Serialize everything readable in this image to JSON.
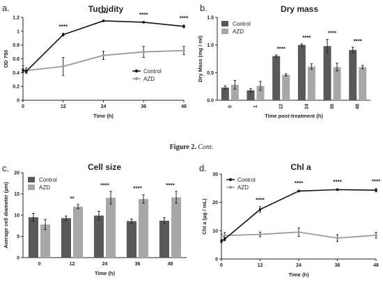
{
  "figure": {
    "caption": {
      "label": "Figure 2.",
      "text": "Cont."
    }
  },
  "colors": {
    "control_line": "#111111",
    "azd_line": "#9a9a9a",
    "control_bar": "#595959",
    "azd_bar": "#a8a8a8"
  },
  "chart_data": [
    {
      "id": "a",
      "letter": "a.",
      "type": "line",
      "title": "Turbidity",
      "xlabel": "Time (h)",
      "ylabel": "OD 750",
      "xlim": [
        0,
        48
      ],
      "ylim": [
        0,
        1.2
      ],
      "xticks": [
        0,
        12,
        24,
        36,
        48
      ],
      "yticks": [
        0,
        0.2,
        0.4,
        0.6,
        0.8,
        1,
        1.2
      ],
      "ytick_labels": [
        "0",
        "0.2",
        "0.4",
        "0.6",
        "0.8",
        "1",
        "1.2"
      ],
      "legend": "bottom-right",
      "series": [
        {
          "name": "Control",
          "x": [
            0,
            1,
            12,
            24,
            36,
            48
          ],
          "y": [
            0.43,
            0.42,
            0.95,
            1.15,
            1.13,
            1.07
          ],
          "err": [
            0.03,
            0.02,
            0.02,
            0.01,
            0.01,
            0.02
          ]
        },
        {
          "name": "AZD",
          "x": [
            0,
            1,
            12,
            24,
            36,
            48
          ],
          "y": [
            0.45,
            0.43,
            0.49,
            0.65,
            0.7,
            0.72
          ],
          "err": [
            0.05,
            0.04,
            0.13,
            0.06,
            0.08,
            0.06
          ]
        }
      ],
      "annotations": [
        {
          "x": 12,
          "text": "****"
        },
        {
          "x": 24,
          "text": "****"
        },
        {
          "x": 36,
          "text": "****"
        },
        {
          "x": 48,
          "text": "****"
        }
      ]
    },
    {
      "id": "b",
      "letter": "b.",
      "type": "bar",
      "title": "Dry mass",
      "xlabel": "Time post-treatment (h)",
      "ylabel": "Dry Mass (mg / ml)",
      "ylim": [
        0,
        1.5
      ],
      "yticks": [
        0,
        0.5,
        1,
        1.5
      ],
      "ytick_labels": [
        "0.0",
        "0.5",
        "1.0",
        "1.5"
      ],
      "categories": [
        "0",
        "1",
        "12",
        "24",
        "36",
        "48"
      ],
      "legend": "top-left",
      "series": [
        {
          "name": "Control",
          "values": [
            0.23,
            0.18,
            0.8,
            1.0,
            0.98,
            0.91
          ],
          "err": [
            0.03,
            0.03,
            0.02,
            0.02,
            0.12,
            0.05
          ]
        },
        {
          "name": "AZD",
          "values": [
            0.28,
            0.26,
            0.46,
            0.61,
            0.6,
            0.6
          ],
          "err": [
            0.08,
            0.08,
            0.02,
            0.05,
            0.07,
            0.03
          ]
        }
      ],
      "annotations": [
        {
          "category": "12",
          "text": "****"
        },
        {
          "category": "24",
          "text": "****"
        },
        {
          "category": "36",
          "text": "****"
        },
        {
          "category": "48",
          "text": "****"
        }
      ]
    },
    {
      "id": "c",
      "letter": "c.",
      "type": "bar",
      "title": "Cell size",
      "xlabel": "Time (h)",
      "ylabel": "Average cell diameter (µm)",
      "ylim": [
        0,
        20
      ],
      "yticks": [
        0,
        5,
        10,
        15,
        20
      ],
      "ytick_labels": [
        "0",
        "5",
        "10",
        "15",
        "20"
      ],
      "categories": [
        "0",
        "12",
        "24",
        "36",
        "48"
      ],
      "legend": "top-left",
      "series": [
        {
          "name": "Control",
          "values": [
            9.5,
            9.3,
            9.9,
            8.6,
            8.7
          ],
          "err": [
            0.9,
            0.5,
            1.0,
            0.5,
            0.7
          ]
        },
        {
          "name": "AZD",
          "values": [
            7.8,
            12.0,
            14.1,
            13.8,
            14.2
          ],
          "err": [
            1.2,
            0.5,
            1.5,
            1.0,
            1.4
          ]
        }
      ],
      "annotations": [
        {
          "category": "12",
          "text": "**"
        },
        {
          "category": "24",
          "text": "****"
        },
        {
          "category": "36",
          "text": "****"
        },
        {
          "category": "48",
          "text": "****"
        }
      ]
    },
    {
      "id": "d",
      "letter": "d.",
      "type": "line",
      "title": "Chl a",
      "xlabel": "Time (h)",
      "ylabel": "Chl a (µg / mL)",
      "xlim": [
        0,
        48
      ],
      "ylim": [
        0,
        30
      ],
      "xticks": [
        0,
        12,
        24,
        36,
        48
      ],
      "yticks": [
        0,
        10,
        20,
        30
      ],
      "ytick_labels": [
        "0",
        "10",
        "20",
        "30"
      ],
      "legend": "top-left",
      "series": [
        {
          "name": "Control",
          "x": [
            0,
            1,
            12,
            24,
            36,
            48
          ],
          "y": [
            6.3,
            7.0,
            17.5,
            24.0,
            24.5,
            24.3
          ],
          "err": [
            0.6,
            0.6,
            1.0,
            0.3,
            0.3,
            0.6
          ]
        },
        {
          "name": "AZD",
          "x": [
            0,
            1,
            12,
            24,
            36,
            48
          ],
          "y": [
            7.8,
            8.3,
            8.7,
            9.5,
            7.4,
            8.4
          ],
          "err": [
            1.0,
            1.0,
            0.8,
            1.5,
            1.2,
            1.0
          ]
        }
      ],
      "annotations": [
        {
          "x": 12,
          "text": "****"
        },
        {
          "x": 24,
          "text": "****"
        },
        {
          "x": 36,
          "text": "****"
        },
        {
          "x": 48,
          "text": "****"
        }
      ]
    }
  ]
}
